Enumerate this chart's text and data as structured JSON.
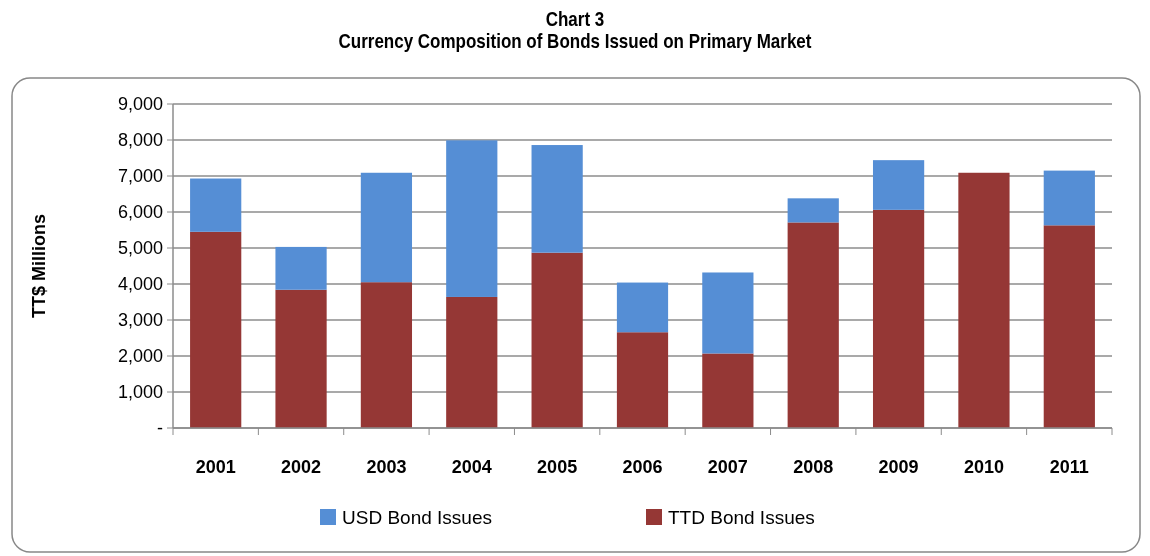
{
  "chart_data": {
    "type": "bar",
    "title": "Chart 3\nCurrency Composition of Bonds Issued on Primary Market",
    "ylabel": "TT$ Millions",
    "categories": [
      "2001",
      "2002",
      "2003",
      "2004",
      "2005",
      "2006",
      "2007",
      "2008",
      "2009",
      "2010",
      "2011"
    ],
    "stacked": true,
    "series": [
      {
        "name": "TTD Bond Issues",
        "color": "#953735",
        "values": [
          5450,
          3840,
          4050,
          3640,
          4870,
          2660,
          2070,
          5710,
          6060,
          7090,
          5630
        ]
      },
      {
        "name": "USD Bond Issues",
        "color": "#558ed5",
        "values": [
          1480,
          1190,
          3040,
          4350,
          2990,
          1380,
          2250,
          670,
          1380,
          0,
          1520
        ]
      }
    ],
    "ylim": [
      0,
      9000
    ],
    "yticks": [
      {
        "value": 0,
        "label": "-"
      },
      {
        "value": 1000,
        "label": "1,000"
      },
      {
        "value": 2000,
        "label": "2,000"
      },
      {
        "value": 3000,
        "label": "3,000"
      },
      {
        "value": 4000,
        "label": "4,000"
      },
      {
        "value": 5000,
        "label": "5,000"
      },
      {
        "value": 6000,
        "label": "6,000"
      },
      {
        "value": 7000,
        "label": "7,000"
      },
      {
        "value": 8000,
        "label": "8,000"
      },
      {
        "value": 9000,
        "label": "9,000"
      }
    ],
    "grid": "y",
    "legend": "bottom"
  }
}
